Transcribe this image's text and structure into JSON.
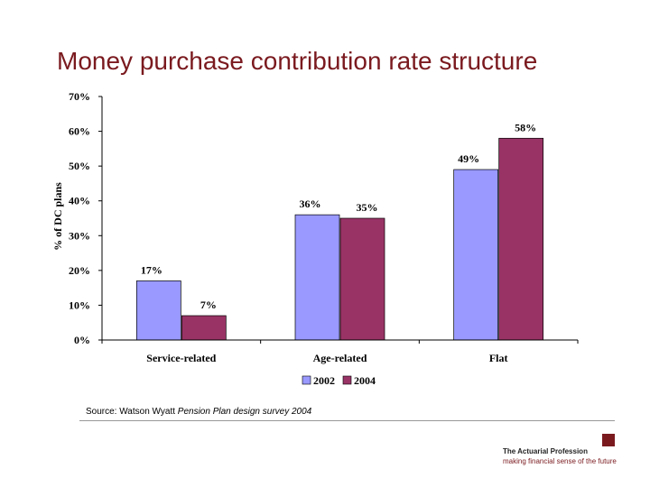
{
  "page": {
    "title": "Money purchase contribution rate structure",
    "source_prefix": "Source: Watson Wyatt ",
    "source_italic": "Pension Plan design survey 2004",
    "brand_name": "The Actuarial Profession",
    "brand_tagline": "making financial sense of the future",
    "brand_color": "#7a1a1f"
  },
  "chart_data": {
    "type": "bar",
    "ylabel": "% of DC plans",
    "xlabel": "",
    "ylim": [
      0,
      70
    ],
    "yticks": [
      0,
      10,
      20,
      30,
      40,
      50,
      60,
      70
    ],
    "ytick_labels": [
      "0%",
      "10%",
      "20%",
      "30%",
      "40%",
      "50%",
      "60%",
      "70%"
    ],
    "categories": [
      "Service-related",
      "Age-related",
      "Flat"
    ],
    "series": [
      {
        "name": "2002",
        "values": [
          17,
          36,
          49
        ],
        "labels": [
          "17%",
          "36%",
          "49%"
        ],
        "color": "#9999ff"
      },
      {
        "name": "2004",
        "values": [
          7,
          35,
          58
        ],
        "labels": [
          "7%",
          "35%",
          "58%"
        ],
        "color": "#993366"
      }
    ],
    "legend": "bottom",
    "grid": false
  }
}
